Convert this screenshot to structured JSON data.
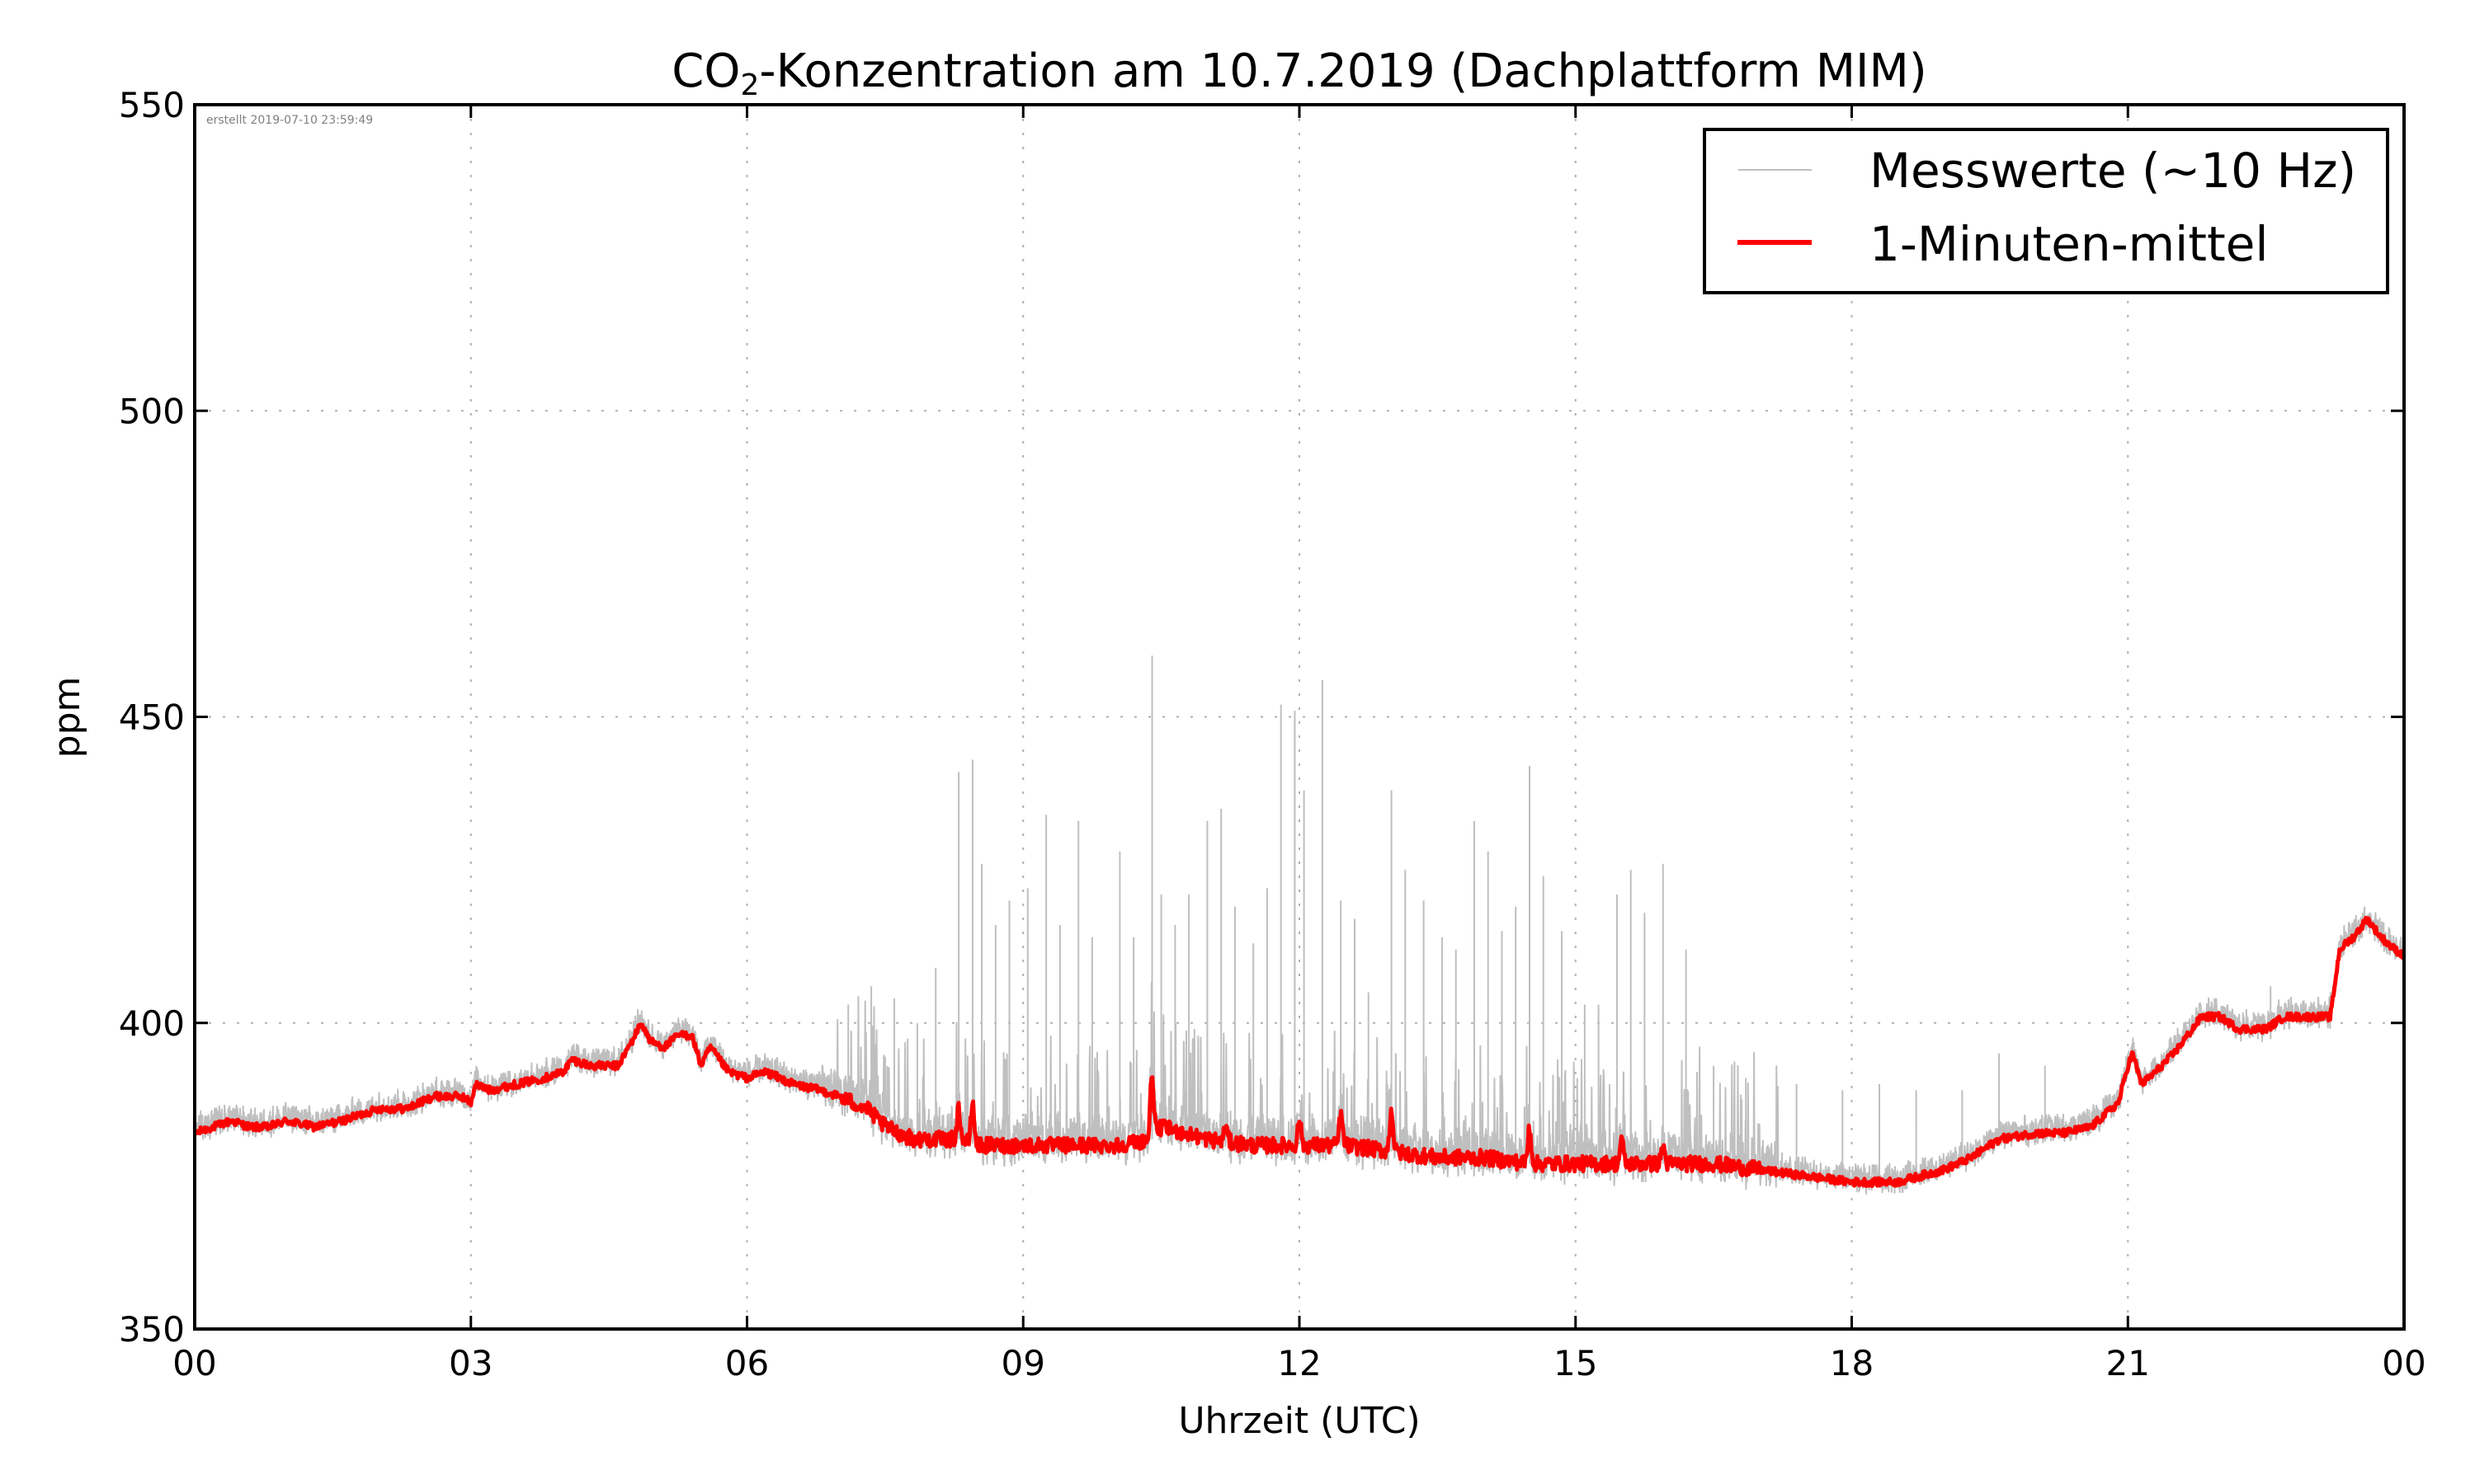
{
  "chart_data": {
    "type": "line",
    "title": "CO₂-Konzentration am 10.7.2019 (Dachplattform MIM)",
    "title_parts": {
      "prefix": "CO",
      "subscript": "2",
      "suffix": "-Konzentration am 10.7.2019 (Dachplattform MIM)"
    },
    "xlabel": "Uhrzeit (UTC)",
    "ylabel": "ppm",
    "xlim": [
      0,
      24
    ],
    "ylim": [
      350,
      550
    ],
    "xticks": [
      0,
      3,
      6,
      9,
      12,
      15,
      18,
      21,
      24
    ],
    "xtick_labels": [
      "00",
      "03",
      "06",
      "09",
      "12",
      "15",
      "18",
      "21",
      "00"
    ],
    "yticks": [
      350,
      400,
      450,
      500,
      550
    ],
    "ytick_labels": [
      "350",
      "400",
      "450",
      "500",
      "550"
    ],
    "grid": true,
    "legend_position": "top-right",
    "annotation": "erstellt 2019-07-10 23:59:49",
    "series": [
      {
        "name": "Messwerte (~10 Hz)",
        "color": "#bfbfbf",
        "description": "raw measurements; noisy band around the 1-minute mean with sharp upward spikes between ~07 and ~17 UTC",
        "noise_amplitude_ppm": 3,
        "spikes": [
          {
            "x": 7.1,
            "y": 403
          },
          {
            "x": 7.35,
            "y": 406
          },
          {
            "x": 7.6,
            "y": 404
          },
          {
            "x": 7.85,
            "y": 400
          },
          {
            "x": 8.05,
            "y": 409
          },
          {
            "x": 8.3,
            "y": 441
          },
          {
            "x": 8.45,
            "y": 443
          },
          {
            "x": 8.55,
            "y": 426
          },
          {
            "x": 8.7,
            "y": 416
          },
          {
            "x": 8.85,
            "y": 420
          },
          {
            "x": 9.05,
            "y": 422
          },
          {
            "x": 9.25,
            "y": 434
          },
          {
            "x": 9.4,
            "y": 416
          },
          {
            "x": 9.6,
            "y": 433
          },
          {
            "x": 9.75,
            "y": 414
          },
          {
            "x": 10.05,
            "y": 428
          },
          {
            "x": 10.2,
            "y": 414
          },
          {
            "x": 10.4,
            "y": 460
          },
          {
            "x": 10.5,
            "y": 421
          },
          {
            "x": 10.65,
            "y": 416
          },
          {
            "x": 10.8,
            "y": 421
          },
          {
            "x": 11.0,
            "y": 433
          },
          {
            "x": 11.15,
            "y": 435
          },
          {
            "x": 11.3,
            "y": 419
          },
          {
            "x": 11.5,
            "y": 413
          },
          {
            "x": 11.65,
            "y": 422
          },
          {
            "x": 11.8,
            "y": 452
          },
          {
            "x": 11.95,
            "y": 451
          },
          {
            "x": 12.05,
            "y": 438
          },
          {
            "x": 12.25,
            "y": 456
          },
          {
            "x": 12.45,
            "y": 420
          },
          {
            "x": 12.6,
            "y": 417
          },
          {
            "x": 12.75,
            "y": 405
          },
          {
            "x": 13.0,
            "y": 438
          },
          {
            "x": 13.15,
            "y": 425
          },
          {
            "x": 13.35,
            "y": 420
          },
          {
            "x": 13.55,
            "y": 414
          },
          {
            "x": 13.7,
            "y": 412
          },
          {
            "x": 13.9,
            "y": 433
          },
          {
            "x": 14.05,
            "y": 428
          },
          {
            "x": 14.2,
            "y": 415
          },
          {
            "x": 14.35,
            "y": 419
          },
          {
            "x": 14.5,
            "y": 442
          },
          {
            "x": 14.65,
            "y": 424
          },
          {
            "x": 14.85,
            "y": 415
          },
          {
            "x": 15.1,
            "y": 403
          },
          {
            "x": 15.25,
            "y": 403
          },
          {
            "x": 15.45,
            "y": 421
          },
          {
            "x": 15.6,
            "y": 425
          },
          {
            "x": 15.75,
            "y": 418
          },
          {
            "x": 15.95,
            "y": 426
          },
          {
            "x": 16.2,
            "y": 412
          },
          {
            "x": 16.5,
            "y": 393
          },
          {
            "x": 16.85,
            "y": 391
          },
          {
            "x": 17.4,
            "y": 390
          },
          {
            "x": 17.9,
            "y": 389
          },
          {
            "x": 18.3,
            "y": 390
          },
          {
            "x": 18.7,
            "y": 389
          },
          {
            "x": 19.2,
            "y": 389
          },
          {
            "x": 19.6,
            "y": 395
          },
          {
            "x": 20.1,
            "y": 393
          },
          {
            "x": 22.55,
            "y": 406
          }
        ]
      },
      {
        "name": "1-Minuten-mittel",
        "color": "#ff0000",
        "x": [
          0,
          0.2,
          0.4,
          0.6,
          0.8,
          1.0,
          1.3,
          1.6,
          2.0,
          2.3,
          2.6,
          2.9,
          3.0,
          3.05,
          3.2,
          3.5,
          3.8,
          4.0,
          4.1,
          4.3,
          4.6,
          4.75,
          4.85,
          4.95,
          5.1,
          5.25,
          5.4,
          5.5,
          5.6,
          5.8,
          6.0,
          6.2,
          6.5,
          6.8,
          7.0,
          7.3,
          7.5,
          7.8,
          8.0,
          8.3,
          8.5,
          9.0,
          9.5,
          10.0,
          10.4,
          10.5,
          11.0,
          11.5,
          12.0,
          12.5,
          13.0,
          13.5,
          14.0,
          14.5,
          15.0,
          15.5,
          16.0,
          16.5,
          17.0,
          17.5,
          18.0,
          18.5,
          19.0,
          19.3,
          19.6,
          20.0,
          20.3,
          20.6,
          20.9,
          21.0,
          21.05,
          21.15,
          21.3,
          21.5,
          21.8,
          22.0,
          22.2,
          22.5,
          22.7,
          22.9,
          23.1,
          23.2,
          23.3,
          23.45,
          23.6,
          23.75,
          23.9,
          24.0
        ],
        "y": [
          382,
          383,
          384,
          383,
          383,
          384,
          383,
          384,
          386,
          386,
          388,
          388,
          387,
          390,
          389,
          390,
          391,
          392,
          394,
          393,
          393,
          397,
          400,
          397,
          396,
          398,
          398,
          393,
          396,
          392,
          391,
          392,
          390,
          389,
          388,
          386,
          383,
          381,
          381,
          381,
          380,
          380,
          380,
          380,
          381,
          383,
          381,
          380,
          380,
          380,
          379,
          378,
          378,
          377,
          377,
          377,
          377,
          377,
          376,
          375,
          374,
          374,
          376,
          378,
          381,
          382,
          382,
          383,
          387,
          393,
          395,
          390,
          392,
          395,
          401,
          401,
          399,
          399,
          401,
          401,
          401,
          401,
          412,
          414,
          417,
          414,
          412,
          411
        ],
        "bumps": [
          {
            "x": 8.3,
            "y": 386
          },
          {
            "x": 8.45,
            "y": 387
          },
          {
            "x": 10.4,
            "y": 392
          },
          {
            "x": 11.2,
            "y": 383
          },
          {
            "x": 12.0,
            "y": 384
          },
          {
            "x": 12.45,
            "y": 385
          },
          {
            "x": 13.0,
            "y": 386
          },
          {
            "x": 14.5,
            "y": 383
          },
          {
            "x": 15.5,
            "y": 381
          },
          {
            "x": 15.95,
            "y": 380
          }
        ]
      }
    ]
  }
}
